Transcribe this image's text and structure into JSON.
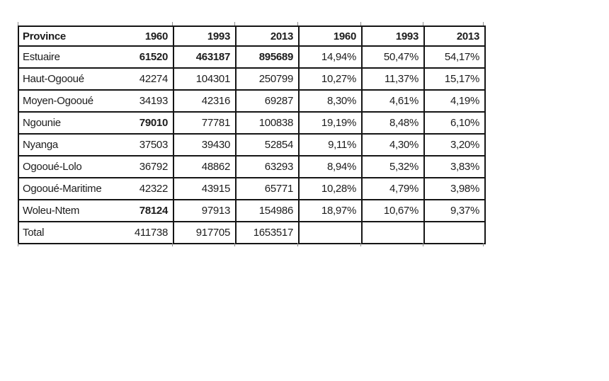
{
  "colors": {
    "background": "#ffffff",
    "table_border": "#151515",
    "text": "#1c1c1c",
    "gridline_stub": "#8c8c8c"
  },
  "table": {
    "columns": [
      "Province",
      "1960",
      "1993",
      "2013",
      "1960",
      "1993",
      "2013"
    ],
    "rows": [
      {
        "cells": [
          "Estuaire",
          "61520",
          "463187",
          "895689",
          "14,94%",
          "50,47%",
          "54,17%"
        ],
        "bold_cols": [
          1,
          2,
          3
        ]
      },
      {
        "cells": [
          "Haut-Ogooué",
          "42274",
          "104301",
          "250799",
          "10,27%",
          "11,37%",
          "15,17%"
        ],
        "bold_cols": []
      },
      {
        "cells": [
          "Moyen-Ogooué",
          "34193",
          "42316",
          "69287",
          "8,30%",
          "4,61%",
          "4,19%"
        ],
        "bold_cols": []
      },
      {
        "cells": [
          "Ngounie",
          "79010",
          "77781",
          "100838",
          "19,19%",
          "8,48%",
          "6,10%"
        ],
        "bold_cols": [
          1
        ]
      },
      {
        "cells": [
          "Nyanga",
          "37503",
          "39430",
          "52854",
          "9,11%",
          "4,30%",
          "3,20%"
        ],
        "bold_cols": []
      },
      {
        "cells": [
          "Ogooué-Lolo",
          "36792",
          "48862",
          "63293",
          "8,94%",
          "5,32%",
          "3,83%"
        ],
        "bold_cols": []
      },
      {
        "cells": [
          "Ogooué-Maritime",
          "42322",
          "43915",
          "65771",
          "10,28%",
          "4,79%",
          "3,98%"
        ],
        "bold_cols": []
      },
      {
        "cells": [
          "Woleu-Ntem",
          "78124",
          "97913",
          "154986",
          "18,97%",
          "10,67%",
          "9,37%"
        ],
        "bold_cols": [
          1
        ]
      },
      {
        "cells": [
          "Total",
          "411738",
          "917705",
          "1653517",
          "",
          "",
          ""
        ],
        "bold_cols": []
      }
    ]
  }
}
